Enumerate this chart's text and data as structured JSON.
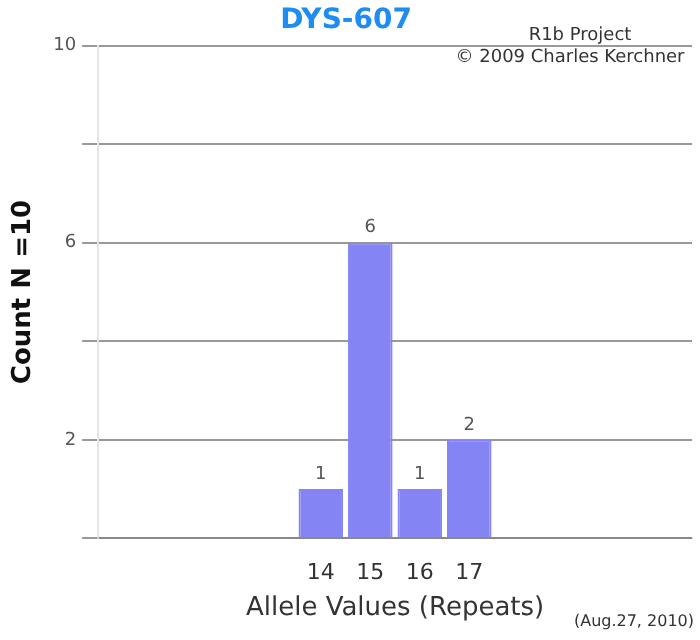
{
  "chart_data": {
    "type": "bar",
    "title": "DYS-607",
    "xlabel": "Allele Values (Repeats)",
    "ylabel": "Count N =10",
    "categories": [
      null,
      null,
      null,
      null,
      "14",
      "15",
      "16",
      "17",
      null,
      null,
      null,
      null
    ],
    "values": [
      null,
      null,
      null,
      null,
      1,
      6,
      1,
      2,
      null,
      null,
      null,
      null
    ],
    "color": "#8484f4",
    "ylim": [
      0,
      10
    ],
    "yticks": [
      {
        "value": 0,
        "label": null
      },
      2,
      {
        "value": 4,
        "label": null
      },
      6,
      {
        "value": 8,
        "label": null
      },
      10
    ],
    "grid": "y",
    "data_labels": true,
    "annotations": [
      "R1b Project",
      "© 2009 Charles Kerchner",
      "(Aug.27, 2010)"
    ]
  }
}
